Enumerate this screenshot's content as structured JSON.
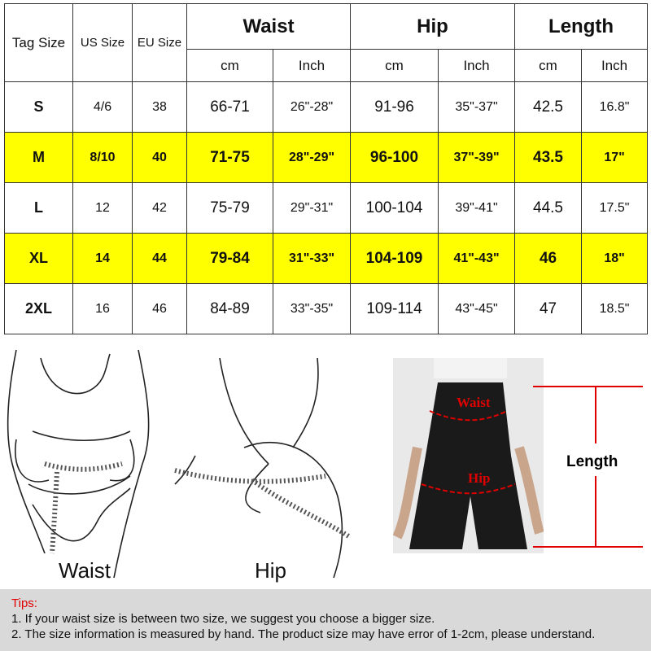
{
  "table": {
    "headers": {
      "tag": "Tag Size",
      "us": "US Size",
      "eu": "EU Size",
      "waist": "Waist",
      "hip": "Hip",
      "length": "Length"
    },
    "subheaders": [
      "cm",
      "Inch",
      "cm",
      "Inch",
      "cm",
      "Inch"
    ],
    "rows": [
      {
        "tag": "S",
        "us": "4/6",
        "eu": "38",
        "waist_cm": "66-71",
        "waist_in": "26\"-28\"",
        "hip_cm": "91-96",
        "hip_in": "35\"-37\"",
        "len_cm": "42.5",
        "len_in": "16.8\"",
        "highlight": false
      },
      {
        "tag": "M",
        "us": "8/10",
        "eu": "40",
        "waist_cm": "71-75",
        "waist_in": "28\"-29\"",
        "hip_cm": "96-100",
        "hip_in": "37\"-39\"",
        "len_cm": "43.5",
        "len_in": "17\"",
        "highlight": true
      },
      {
        "tag": "L",
        "us": "12",
        "eu": "42",
        "waist_cm": "75-79",
        "waist_in": "29\"-31\"",
        "hip_cm": "100-104",
        "hip_in": "39\"-41\"",
        "len_cm": "44.5",
        "len_in": "17.5\"",
        "highlight": false
      },
      {
        "tag": "XL",
        "us": "14",
        "eu": "44",
        "waist_cm": "79-84",
        "waist_in": "31\"-33\"",
        "hip_cm": "104-109",
        "hip_in": "41\"-43\"",
        "len_cm": "46",
        "len_in": "18\"",
        "highlight": true
      },
      {
        "tag": "2XL",
        "us": "16",
        "eu": "46",
        "waist_cm": "84-89",
        "waist_in": "33\"-35\"",
        "hip_cm": "109-114",
        "hip_in": "43\"-45\"",
        "len_cm": "47",
        "len_in": "18.5\"",
        "highlight": false
      }
    ]
  },
  "illustration": {
    "waist_label": "Waist",
    "hip_label": "Hip"
  },
  "photo": {
    "waist_label": "Waist",
    "hip_label": "Hip",
    "length_label": "Length"
  },
  "tips": {
    "title": "Tips:",
    "lines": [
      "1. If your waist size is between two size, we suggest you choose a bigger size.",
      "2. The size information is measured by hand. The product size may have error of 1-2cm, please understand."
    ]
  },
  "colors": {
    "highlight": "#ffff00",
    "accent_red": "#e00000",
    "tips_bg": "#d9d9d9"
  }
}
